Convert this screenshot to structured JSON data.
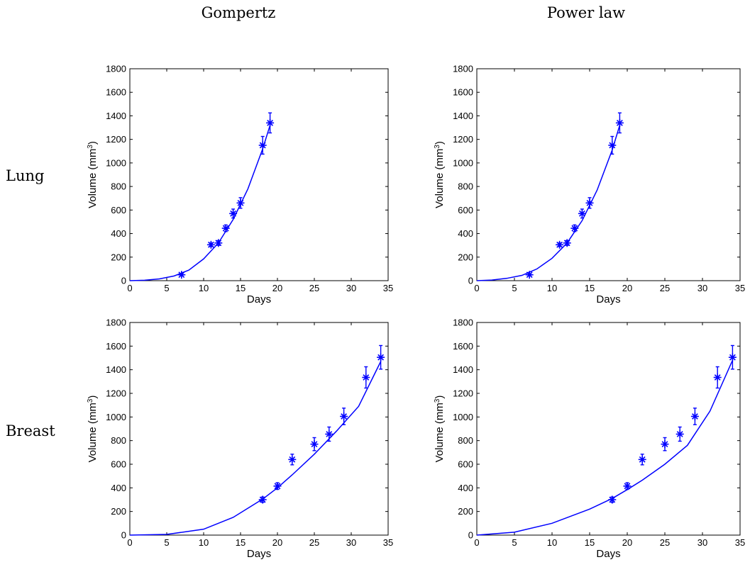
{
  "column_titles": [
    "Gompertz",
    "Power law"
  ],
  "row_titles": [
    "Lung",
    "Breast"
  ],
  "colors": {
    "series": "#0000ff",
    "axes": "#000000"
  },
  "chart_data": [
    {
      "type": "scatter",
      "panel": "lung-gompertz",
      "xlabel": "Days",
      "ylabel": "Volume (mm3)",
      "ylabel_unit_exponent": "3",
      "xlim": [
        0,
        35
      ],
      "ylim": [
        0,
        1800
      ],
      "xticks": [
        0,
        5,
        10,
        15,
        20,
        25,
        30,
        35
      ],
      "yticks": [
        0,
        200,
        400,
        600,
        800,
        1000,
        1200,
        1400,
        1600,
        1800
      ],
      "grid": false,
      "marker": "asterisk",
      "points": [
        {
          "x": 7,
          "y": 50,
          "err": 8
        },
        {
          "x": 11,
          "y": 305,
          "err": 15
        },
        {
          "x": 12,
          "y": 320,
          "err": 20
        },
        {
          "x": 13,
          "y": 445,
          "err": 28
        },
        {
          "x": 14,
          "y": 570,
          "err": 38
        },
        {
          "x": 15,
          "y": 660,
          "err": 45
        },
        {
          "x": 18,
          "y": 1150,
          "err": 75
        },
        {
          "x": 19,
          "y": 1340,
          "err": 85
        }
      ],
      "fit": {
        "x": [
          0,
          2,
          4,
          6,
          8,
          10,
          12,
          14,
          16,
          18,
          19
        ],
        "y": [
          0,
          4,
          15,
          40,
          90,
          185,
          320,
          520,
          780,
          1120,
          1320
        ]
      }
    },
    {
      "type": "scatter",
      "panel": "lung-power-law",
      "xlabel": "Days",
      "ylabel": "Volume (mm3)",
      "ylabel_unit_exponent": "3",
      "xlim": [
        0,
        35
      ],
      "ylim": [
        0,
        1800
      ],
      "xticks": [
        0,
        5,
        10,
        15,
        20,
        25,
        30,
        35
      ],
      "yticks": [
        0,
        200,
        400,
        600,
        800,
        1000,
        1200,
        1400,
        1600,
        1800
      ],
      "grid": false,
      "marker": "asterisk",
      "points": [
        {
          "x": 7,
          "y": 50,
          "err": 8
        },
        {
          "x": 11,
          "y": 305,
          "err": 15
        },
        {
          "x": 12,
          "y": 320,
          "err": 20
        },
        {
          "x": 13,
          "y": 445,
          "err": 28
        },
        {
          "x": 14,
          "y": 570,
          "err": 38
        },
        {
          "x": 15,
          "y": 660,
          "err": 45
        },
        {
          "x": 18,
          "y": 1150,
          "err": 75
        },
        {
          "x": 19,
          "y": 1340,
          "err": 85
        }
      ],
      "fit": {
        "x": [
          0,
          2,
          4,
          6,
          8,
          10,
          12,
          14,
          16,
          18,
          19
        ],
        "y": [
          0,
          5,
          20,
          45,
          100,
          190,
          320,
          510,
          770,
          1110,
          1320
        ]
      }
    },
    {
      "type": "scatter",
      "panel": "breast-gompertz",
      "xlabel": "Days",
      "ylabel": "Volume (mm3)",
      "ylabel_unit_exponent": "3",
      "xlim": [
        0,
        35
      ],
      "ylim": [
        0,
        1800
      ],
      "xticks": [
        0,
        5,
        10,
        15,
        20,
        25,
        30,
        35
      ],
      "yticks": [
        0,
        200,
        400,
        600,
        800,
        1000,
        1200,
        1400,
        1600,
        1800
      ],
      "grid": false,
      "marker": "asterisk",
      "points": [
        {
          "x": 18,
          "y": 300,
          "err": 22
        },
        {
          "x": 20,
          "y": 415,
          "err": 28
        },
        {
          "x": 22,
          "y": 640,
          "err": 45
        },
        {
          "x": 25,
          "y": 770,
          "err": 55
        },
        {
          "x": 27,
          "y": 855,
          "err": 60
        },
        {
          "x": 29,
          "y": 1005,
          "err": 70
        },
        {
          "x": 32,
          "y": 1335,
          "err": 90
        },
        {
          "x": 34,
          "y": 1505,
          "err": 100
        }
      ],
      "fit": {
        "x": [
          0,
          5,
          10,
          14,
          18,
          20,
          22,
          25,
          28,
          31,
          34
        ],
        "y": [
          0,
          6,
          50,
          150,
          305,
          400,
          510,
          685,
          880,
          1090,
          1470
        ]
      }
    },
    {
      "type": "scatter",
      "panel": "breast-power-law",
      "xlabel": "Days",
      "ylabel": "Volume (mm3)",
      "ylabel_unit_exponent": "3",
      "xlim": [
        0,
        35
      ],
      "ylim": [
        0,
        1800
      ],
      "xticks": [
        0,
        5,
        10,
        15,
        20,
        25,
        30,
        35
      ],
      "yticks": [
        0,
        200,
        400,
        600,
        800,
        1000,
        1200,
        1400,
        1600,
        1800
      ],
      "grid": false,
      "marker": "asterisk",
      "points": [
        {
          "x": 18,
          "y": 300,
          "err": 22
        },
        {
          "x": 20,
          "y": 415,
          "err": 28
        },
        {
          "x": 22,
          "y": 640,
          "err": 45
        },
        {
          "x": 25,
          "y": 770,
          "err": 55
        },
        {
          "x": 27,
          "y": 855,
          "err": 60
        },
        {
          "x": 29,
          "y": 1005,
          "err": 70
        },
        {
          "x": 32,
          "y": 1335,
          "err": 90
        },
        {
          "x": 34,
          "y": 1505,
          "err": 100
        }
      ],
      "fit": {
        "x": [
          0,
          5,
          10,
          15,
          18,
          20,
          22,
          25,
          28,
          31,
          34
        ],
        "y": [
          0,
          25,
          100,
          220,
          310,
          385,
          465,
          600,
          760,
          1050,
          1480
        ]
      }
    }
  ]
}
